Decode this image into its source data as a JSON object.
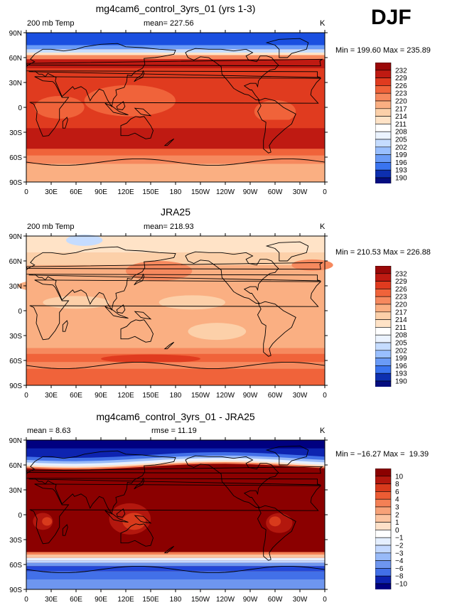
{
  "season": "DJF",
  "colors": {
    "warm": [
      "#ffe3c7",
      "#fcd0a9",
      "#faaf82",
      "#f6895e",
      "#f0633a",
      "#e03b1f",
      "#bf1a12",
      "#9a0808"
    ],
    "cool": [
      "#ebf3ff",
      "#c5dcff",
      "#99bfff",
      "#6a9bf7",
      "#3a74f0",
      "#1a4fe0",
      "#0d2fb0",
      "#050d80"
    ],
    "diff_warm": [
      "#fde0c8",
      "#fbc4a0",
      "#f7a278",
      "#f48055",
      "#ec5c34",
      "#d83a1c",
      "#b3170e",
      "#8b0000"
    ],
    "diff_cool": [
      "#e5efff",
      "#c3d8ff",
      "#98baf8",
      "#6e96ef",
      "#4270e8",
      "#2247d8",
      "#0d23b0",
      "#000080"
    ]
  },
  "x_ticks": [
    "0",
    "30E",
    "60E",
    "90E",
    "120E",
    "150E",
    "180",
    "150W",
    "120W",
    "90W",
    "60W",
    "30W",
    "0"
  ],
  "y_ticks": [
    "90N",
    "60N",
    "30N",
    "0",
    "30S",
    "60S",
    "90S"
  ],
  "panels": [
    {
      "title": "mg4cam6_control_3yrs_01 (yrs 1-3)",
      "left_label": "200 mb Temp",
      "center_label": "mean= 227.56",
      "right_label": "K",
      "minmax": "Min = 199.60 Max = 235.89",
      "legend": [
        "232",
        "229",
        "226",
        "223",
        "220",
        "217",
        "214",
        "211",
        "208",
        "205",
        "202",
        "199",
        "196",
        "193",
        "190"
      ]
    },
    {
      "title": "JRA25",
      "left_label": "200 mb Temp",
      "center_label": "mean= 218.93",
      "right_label": "K",
      "minmax": "Min = 210.53 Max = 226.88",
      "legend": [
        "232",
        "229",
        "226",
        "223",
        "220",
        "217",
        "214",
        "211",
        "208",
        "205",
        "202",
        "199",
        "196",
        "193",
        "190"
      ]
    },
    {
      "title": "mg4cam6_control_3yrs_01 - JRA25",
      "left_label": "mean =   8.63",
      "center_label": "rmse =   11.19",
      "right_label": "K",
      "minmax": "Min = −16.27 Max =  19.39",
      "legend": [
        "10",
        "8",
        "6",
        "4",
        "3",
        "2",
        "1",
        "0",
        "−1",
        "−2",
        "−3",
        "−4",
        "−6",
        "−8",
        "−10"
      ]
    }
  ]
}
